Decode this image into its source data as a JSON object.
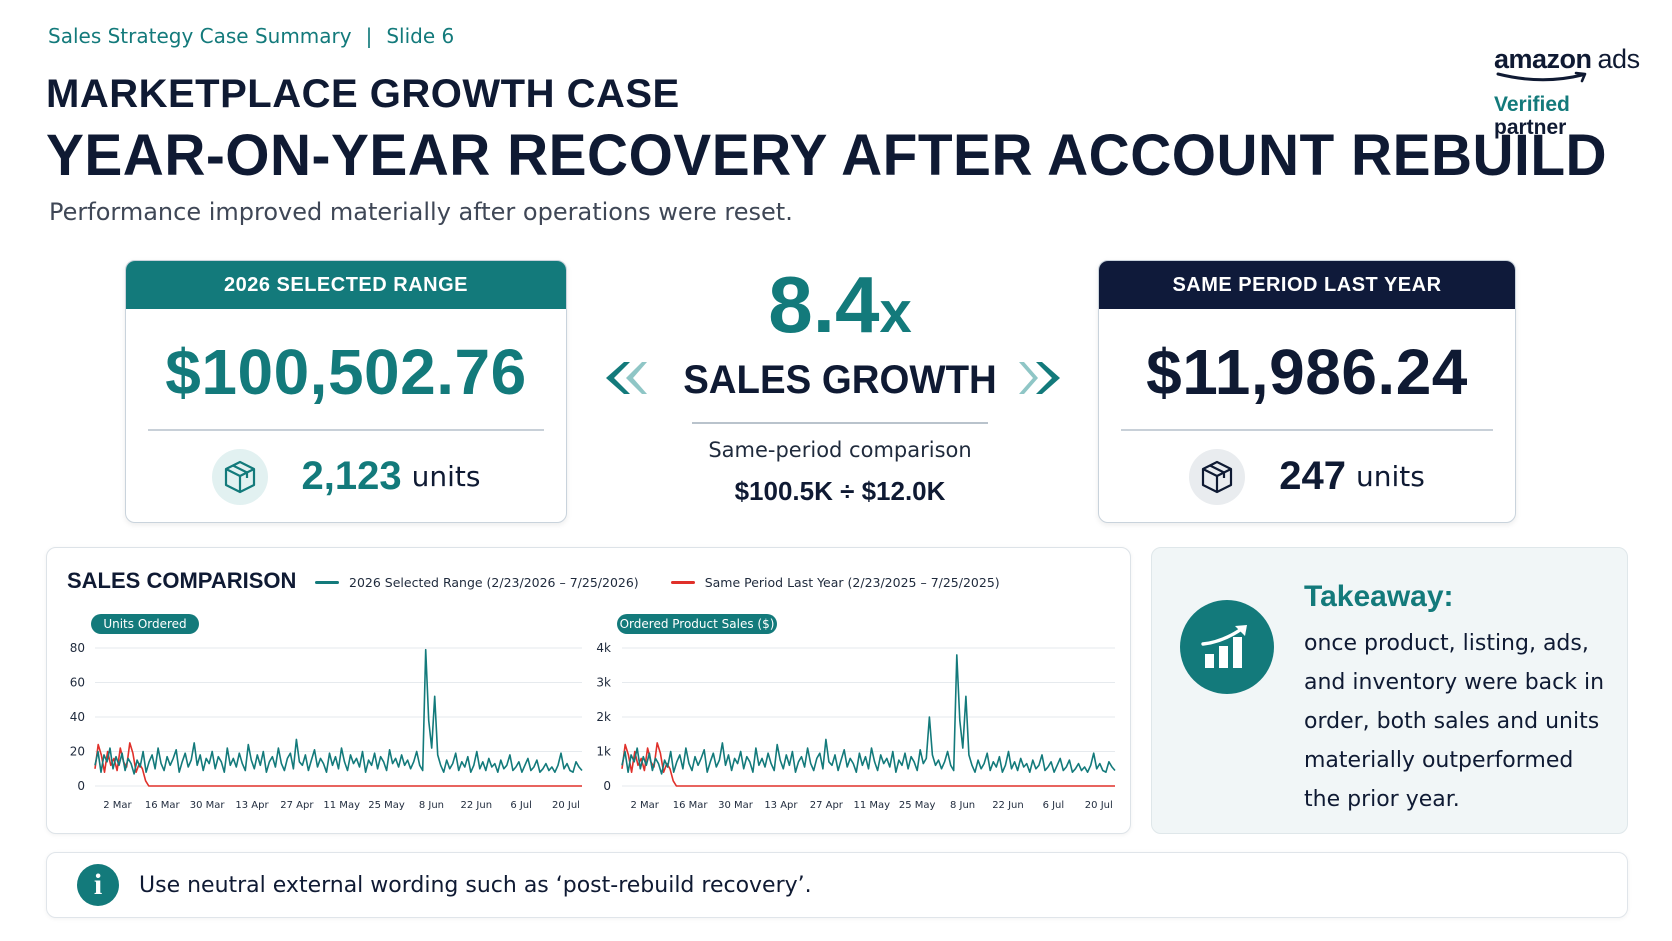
{
  "header": {
    "deck": "Sales Strategy Case Summary",
    "separator": "|",
    "slide": "Slide 6",
    "eyebrow": "MARKETPLACE GROWTH CASE",
    "headline": "YEAR-ON-YEAR RECOVERY AFTER ACCOUNT REBUILD",
    "subtitle": "Performance improved materially after operations were reset."
  },
  "brand": {
    "logo_bold": "amazon",
    "logo_light": "ads",
    "verified": "Verified",
    "partner": "partner"
  },
  "current": {
    "label": "2026 SELECTED RANGE",
    "sales": "$100,502.76",
    "units": "2,123",
    "units_word": "units",
    "icon": "box-icon"
  },
  "growth": {
    "multiple": "8.4",
    "multiple_suffix": "x",
    "label": "SALES GROWTH",
    "note": "Same-period comparison",
    "calc": "$100.5K ÷ $12.0K"
  },
  "prior": {
    "label": "SAME PERIOD LAST YEAR",
    "sales": "$11,986.24",
    "units": "247",
    "units_word": "units",
    "icon": "box-icon"
  },
  "chart_section": {
    "title": "SALES COMPARISON",
    "legend_current": "2026 Selected Range (2/23/2026 – 7/25/2026)",
    "legend_prior": "Same Period Last Year (2/23/2025 – 7/25/2025)"
  },
  "colors": {
    "teal": "#137a7b",
    "navy": "#0f1a3a",
    "prior_line": "#e0302a"
  },
  "chart_data": [
    {
      "type": "line",
      "title": "Units Ordered",
      "xlabel": "",
      "ylabel": "",
      "ylim": [
        0,
        80
      ],
      "yticks": [
        "0",
        "20",
        "40",
        "60",
        "80"
      ],
      "xticks": [
        "2 Mar",
        "16 Mar",
        "30 Mar",
        "13 Apr",
        "27 Apr",
        "11 May",
        "25 May",
        "8 Jun",
        "22 Jun",
        "6 Jul",
        "20 Jul"
      ],
      "x_start": "2026-02-23",
      "x_end": "2026-07-25",
      "grid": true,
      "series": [
        {
          "name": "2026 Selected Range (2/23/2026 – 7/25/2026)",
          "values": [
            12,
            20,
            8,
            18,
            14,
            22,
            10,
            17,
            12,
            19,
            9,
            16,
            13,
            7,
            15,
            11,
            20,
            8,
            14,
            18,
            10,
            22,
            13,
            9,
            17,
            12,
            16,
            21,
            8,
            14,
            19,
            11,
            15,
            25,
            12,
            18,
            9,
            16,
            13,
            20,
            10,
            17,
            14,
            8,
            22,
            12,
            16,
            11,
            19,
            13,
            9,
            24,
            15,
            10,
            18,
            12,
            20,
            8,
            14,
            17,
            11,
            22,
            13,
            9,
            16,
            19,
            10,
            27,
            14,
            12,
            18,
            9,
            15,
            21,
            11,
            16,
            13,
            8,
            19,
            12,
            17,
            10,
            22,
            14,
            9,
            18,
            13,
            16,
            11,
            20,
            8,
            15,
            12,
            19,
            10,
            17,
            14,
            9,
            21,
            13,
            16,
            11,
            18,
            12,
            15,
            10,
            14,
            20,
            12,
            9,
            79,
            38,
            22,
            52,
            18,
            12,
            8,
            15,
            10,
            13,
            19,
            9,
            14,
            11,
            17,
            8,
            12,
            20,
            10,
            14,
            9,
            16,
            11,
            13,
            8,
            15,
            10,
            12,
            18,
            9,
            11,
            14,
            8,
            12,
            16,
            9,
            11,
            15,
            8,
            10,
            13,
            9,
            11,
            8,
            12,
            19,
            10,
            13,
            9,
            8,
            14,
            11,
            9
          ],
          "color": "#137a7b"
        },
        {
          "name": "Same Period Last Year (2/23/2025 – 7/25/2025)",
          "values": [
            10,
            24,
            18,
            8,
            20,
            12,
            16,
            9,
            22,
            14,
            11,
            25,
            19,
            8,
            13,
            10,
            3,
            0,
            0,
            0,
            0,
            0,
            0,
            0,
            0,
            0,
            0,
            0,
            0,
            0,
            0,
            0,
            0,
            0,
            0,
            0,
            0,
            0,
            0,
            0,
            0,
            0,
            0,
            0,
            0,
            0,
            0,
            0,
            0,
            0,
            0,
            0,
            0,
            0,
            0,
            0,
            0,
            0,
            0,
            0,
            0,
            0,
            0,
            0,
            0,
            0,
            0,
            0,
            0,
            0,
            0,
            0,
            0,
            0,
            0,
            0,
            0,
            0,
            0,
            0,
            0,
            0,
            0,
            0,
            0,
            0,
            0,
            0,
            0,
            0,
            0,
            0,
            0,
            0,
            0,
            0,
            0,
            0,
            0,
            0,
            0,
            0,
            0,
            0,
            0,
            0,
            0,
            0,
            0,
            0,
            0,
            0,
            0,
            0,
            0,
            0,
            0,
            0,
            0,
            0,
            0,
            0,
            0,
            0,
            0,
            0,
            0,
            0,
            0,
            0,
            0,
            0,
            0,
            0,
            0,
            0,
            0,
            0,
            0,
            0,
            0,
            0,
            0,
            0,
            0,
            0,
            0,
            0,
            0,
            0,
            0,
            0,
            0,
            0,
            0
          ],
          "color": "#e0302a"
        }
      ]
    },
    {
      "type": "line",
      "title": "Ordered Product Sales ($)",
      "xlabel": "",
      "ylabel": "",
      "ylim": [
        0,
        4000
      ],
      "yticks": [
        "0",
        "1k",
        "2k",
        "3k",
        "4k"
      ],
      "xticks": [
        "2 Mar",
        "16 Mar",
        "30 Mar",
        "13 Apr",
        "27 Apr",
        "11 May",
        "25 May",
        "8 Jun",
        "22 Jun",
        "6 Jul",
        "20 Jul"
      ],
      "x_start": "2026-02-23",
      "x_end": "2026-07-25",
      "grid": true,
      "series": [
        {
          "name": "2026 Selected Range (2/23/2026 – 7/25/2026)",
          "values": [
            600,
            1000,
            400,
            900,
            700,
            1100,
            500,
            850,
            600,
            950,
            450,
            800,
            650,
            350,
            750,
            550,
            1000,
            400,
            700,
            900,
            500,
            1100,
            650,
            450,
            850,
            600,
            800,
            1050,
            400,
            700,
            950,
            550,
            750,
            1250,
            600,
            900,
            450,
            800,
            650,
            1000,
            500,
            850,
            700,
            400,
            1100,
            600,
            800,
            550,
            950,
            650,
            450,
            1200,
            750,
            500,
            900,
            600,
            1000,
            400,
            700,
            850,
            550,
            1100,
            650,
            450,
            800,
            950,
            500,
            1350,
            700,
            600,
            900,
            450,
            750,
            1050,
            550,
            800,
            650,
            400,
            950,
            600,
            850,
            500,
            1100,
            700,
            450,
            900,
            650,
            800,
            550,
            1000,
            400,
            750,
            600,
            950,
            500,
            850,
            700,
            450,
            1050,
            650,
            800,
            2000,
            900,
            600,
            750,
            500,
            700,
            1000,
            600,
            450,
            3800,
            1900,
            1100,
            2600,
            900,
            600,
            400,
            750,
            500,
            650,
            950,
            450,
            700,
            550,
            850,
            400,
            600,
            1000,
            500,
            700,
            450,
            800,
            550,
            650,
            400,
            750,
            500,
            600,
            900,
            450,
            550,
            700,
            400,
            600,
            800,
            450,
            550,
            750,
            400,
            500,
            650,
            450,
            550,
            400,
            600,
            950,
            500,
            650,
            450,
            400,
            700,
            550,
            450
          ],
          "color": "#137a7b"
        },
        {
          "name": "Same Period Last Year (2/23/2025 – 7/25/2025)",
          "values": [
            500,
            1200,
            900,
            400,
            1000,
            600,
            800,
            450,
            1100,
            700,
            550,
            1250,
            950,
            400,
            650,
            500,
            150,
            0,
            0,
            0,
            0,
            0,
            0,
            0,
            0,
            0,
            0,
            0,
            0,
            0,
            0,
            0,
            0,
            0,
            0,
            0,
            0,
            0,
            0,
            0,
            0,
            0,
            0,
            0,
            0,
            0,
            0,
            0,
            0,
            0,
            0,
            0,
            0,
            0,
            0,
            0,
            0,
            0,
            0,
            0,
            0,
            0,
            0,
            0,
            0,
            0,
            0,
            0,
            0,
            0,
            0,
            0,
            0,
            0,
            0,
            0,
            0,
            0,
            0,
            0,
            0,
            0,
            0,
            0,
            0,
            0,
            0,
            0,
            0,
            0,
            0,
            0,
            0,
            0,
            0,
            0,
            0,
            0,
            0,
            0,
            0,
            0,
            0,
            0,
            0,
            0,
            0,
            0,
            0,
            0,
            0,
            0,
            0,
            0,
            0,
            0,
            0,
            0,
            0,
            0,
            0,
            0,
            0,
            0,
            0,
            0,
            0,
            0,
            0,
            0,
            0,
            0,
            0,
            0,
            0,
            0,
            0,
            0,
            0,
            0,
            0,
            0,
            0,
            0,
            0,
            0,
            0,
            0,
            0,
            0,
            0,
            0,
            0,
            0,
            0
          ],
          "color": "#e0302a"
        }
      ]
    }
  ],
  "takeaway": {
    "title": "Takeaway:",
    "body": "once product, listing, ads, and inventory were back in order, both sales and units materially outperformed the prior year.",
    "icon": "growth-chart-icon"
  },
  "note": {
    "icon": "info-icon",
    "text": "Use neutral external wording such as ‘post-rebuild recovery’."
  }
}
